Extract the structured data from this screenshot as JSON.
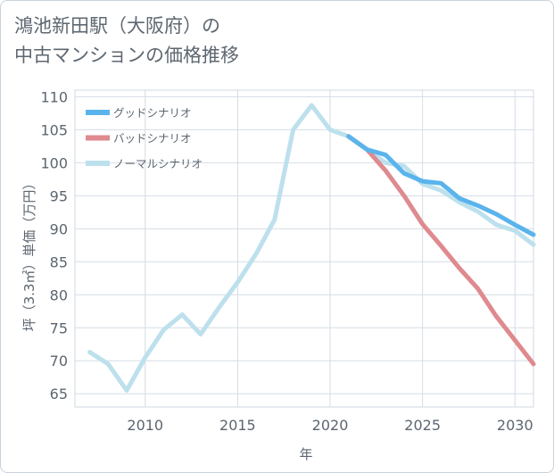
{
  "page": {
    "title_lines": [
      "鴻池新田駅（大阪府）の",
      "中古マンションの価格推移"
    ]
  },
  "chart_data": {
    "type": "line",
    "title": "鴻池新田駅（大阪府）の中古マンションの価格推移",
    "xlabel": "年",
    "ylabel": "坪（3.3㎡）単価（万円）",
    "xlim": [
      2006.2,
      2031
    ],
    "ylim": [
      63,
      111
    ],
    "x_ticks": [
      2010,
      2015,
      2020,
      2025,
      2030
    ],
    "y_ticks": [
      65,
      70,
      75,
      80,
      85,
      90,
      95,
      100,
      105,
      110
    ],
    "grid": true,
    "legend_position": "top-left",
    "series": [
      {
        "name": "グッドシナリオ",
        "color": "#5ab4ec",
        "x": [
          2021,
          2022,
          2023,
          2024,
          2025,
          2026,
          2027,
          2028,
          2029,
          2030,
          2031
        ],
        "values": [
          104,
          102,
          101.2,
          98.4,
          97.2,
          96.9,
          94.6,
          93.5,
          92.2,
          90.6,
          89.1
        ]
      },
      {
        "name": "バッドシナリオ",
        "color": "#de8a8f",
        "x": [
          2021,
          2022,
          2023,
          2024,
          2025,
          2026,
          2027,
          2028,
          2029,
          2030,
          2031
        ],
        "values": [
          104,
          102,
          98.8,
          95,
          90.7,
          87.4,
          84,
          80.9,
          76.7,
          73.1,
          69.5
        ]
      },
      {
        "name": "ノーマルシナリオ",
        "color": "#bde0ed",
        "x": [
          2007,
          2008,
          2009,
          2010,
          2011,
          2012,
          2013,
          2014,
          2015,
          2016,
          2017,
          2018,
          2019,
          2020,
          2021,
          2022,
          2023,
          2024,
          2025,
          2026,
          2027,
          2028,
          2029,
          2030,
          2031
        ],
        "values": [
          71.3,
          69.5,
          65.5,
          70.5,
          74.7,
          77,
          74,
          78.1,
          81.9,
          86.2,
          91.4,
          105,
          108.7,
          105,
          104,
          102,
          100,
          99.5,
          96.8,
          95.8,
          94,
          92.6,
          90.6,
          89.7,
          87.6
        ]
      }
    ]
  }
}
